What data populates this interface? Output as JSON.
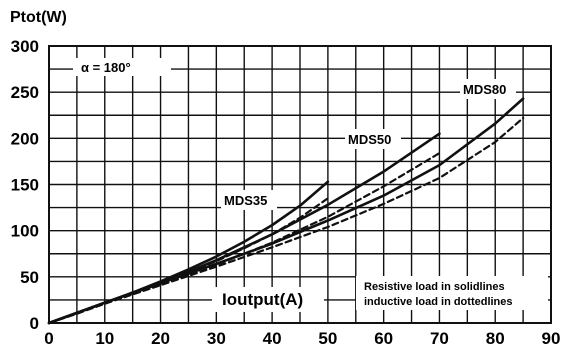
{
  "chart_data": {
    "type": "line",
    "ylabel": "Ptot(W)",
    "xlabel": "Ioutput(A)",
    "annotation": "α = 180°",
    "legend_note": [
      "Resistive load in solidlines",
      "inductive load in dottedlines"
    ],
    "xlim": [
      0,
      90
    ],
    "ylim": [
      0,
      300
    ],
    "x_ticks": [
      0,
      10,
      20,
      30,
      40,
      50,
      60,
      70,
      80,
      90
    ],
    "y_ticks": [
      0,
      50,
      100,
      150,
      200,
      250,
      300
    ],
    "grid": true,
    "series": [
      {
        "name": "MDS35",
        "line_style": "solid",
        "x": [
          0,
          5,
          10,
          15,
          20,
          25,
          30,
          35,
          40,
          45,
          50
        ],
        "y": [
          0,
          11,
          22,
          33,
          45,
          58,
          72,
          88,
          106,
          127,
          153
        ]
      },
      {
        "line_style": "dashed",
        "x": [
          0,
          5,
          10,
          15,
          20,
          25,
          30,
          35,
          40,
          45,
          50
        ],
        "y": [
          0,
          10,
          21,
          32,
          43,
          55,
          67,
          81,
          96,
          114,
          135
        ]
      },
      {
        "name": "MDS50",
        "line_style": "solid",
        "x": [
          0,
          10,
          20,
          30,
          40,
          50,
          60,
          70
        ],
        "y": [
          0,
          22,
          43,
          68,
          96,
          128,
          164,
          205
        ]
      },
      {
        "line_style": "dashed",
        "x": [
          0,
          10,
          20,
          30,
          40,
          50,
          60,
          70
        ],
        "y": [
          0,
          21,
          41,
          63,
          87,
          115,
          148,
          184
        ]
      },
      {
        "name": "MDS80",
        "line_style": "solid",
        "x": [
          0,
          10,
          20,
          30,
          40,
          50,
          60,
          70,
          80,
          85
        ],
        "y": [
          0,
          22,
          43,
          64,
          86,
          111,
          138,
          171,
          216,
          243
        ]
      },
      {
        "line_style": "dashed",
        "x": [
          0,
          10,
          20,
          30,
          40,
          50,
          60,
          70,
          80,
          85
        ],
        "y": [
          0,
          21,
          41,
          61,
          82,
          104,
          129,
          157,
          196,
          222
        ]
      }
    ]
  }
}
